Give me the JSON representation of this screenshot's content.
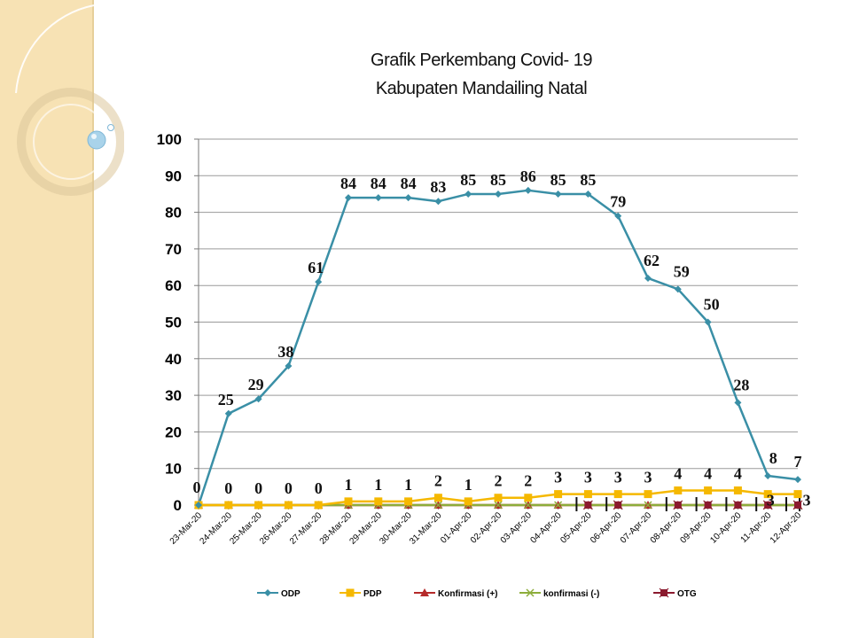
{
  "chart_data": {
    "type": "line",
    "title_line1": "Grafik Perkembang Covid- 19",
    "title_line2": "Kabupaten Mandailing Natal",
    "categories": [
      "23-Mar-20",
      "24-Mar-20",
      "25-Mar-20",
      "26-Mar-20",
      "27-Mar-20",
      "28-Mar-20",
      "29-Mar-20",
      "30-Mar-20",
      "31-Mar-20",
      "01-Apr-20",
      "02-Apr-20",
      "03-Apr-20",
      "04-Apr-20",
      "05-Apr-20",
      "06-Apr-20",
      "07-Apr-20",
      "08-Apr-20",
      "09-Apr-20",
      "10-Apr-20",
      "11-Apr-20",
      "12-Apr-20"
    ],
    "ylim": [
      0,
      100
    ],
    "yticks": [
      0,
      10,
      20,
      30,
      40,
      50,
      60,
      70,
      80,
      90,
      100
    ],
    "grid": true,
    "legend_position": "bottom",
    "series": [
      {
        "name": "ODP",
        "color": "#3a8fa6",
        "marker": "diamond",
        "labels": true,
        "values": [
          0,
          25,
          29,
          38,
          61,
          84,
          84,
          84,
          83,
          85,
          85,
          86,
          85,
          85,
          79,
          62,
          59,
          50,
          28,
          8,
          7
        ]
      },
      {
        "name": "PDP",
        "color": "#f5b800",
        "marker": "square",
        "labels": true,
        "values": [
          0,
          0,
          0,
          0,
          0,
          1,
          1,
          1,
          2,
          1,
          2,
          2,
          3,
          3,
          3,
          3,
          4,
          4,
          4,
          3,
          3
        ]
      },
      {
        "name": "Konfirmasi (+)",
        "color": "#b52a2a",
        "marker": "triangle",
        "labels": false,
        "values": [
          0,
          0,
          0,
          0,
          0,
          0,
          0,
          0,
          0,
          0,
          0,
          0,
          0,
          0,
          0,
          0,
          0,
          0,
          0,
          0,
          0
        ]
      },
      {
        "name": "konfirmasi (-)",
        "color": "#8dad3b",
        "marker": "x",
        "labels": false,
        "values": [
          0,
          0,
          0,
          0,
          0,
          0,
          0,
          0,
          0,
          0,
          0,
          0,
          0,
          0,
          0,
          0,
          0,
          0,
          0,
          0,
          0
        ]
      },
      {
        "name": "OTG",
        "color": "#8b1a2e",
        "marker": "star",
        "labels": false,
        "values": [
          null,
          null,
          null,
          null,
          null,
          null,
          null,
          null,
          null,
          null,
          null,
          null,
          null,
          1,
          1,
          null,
          1,
          1,
          1,
          1,
          1
        ]
      }
    ]
  }
}
